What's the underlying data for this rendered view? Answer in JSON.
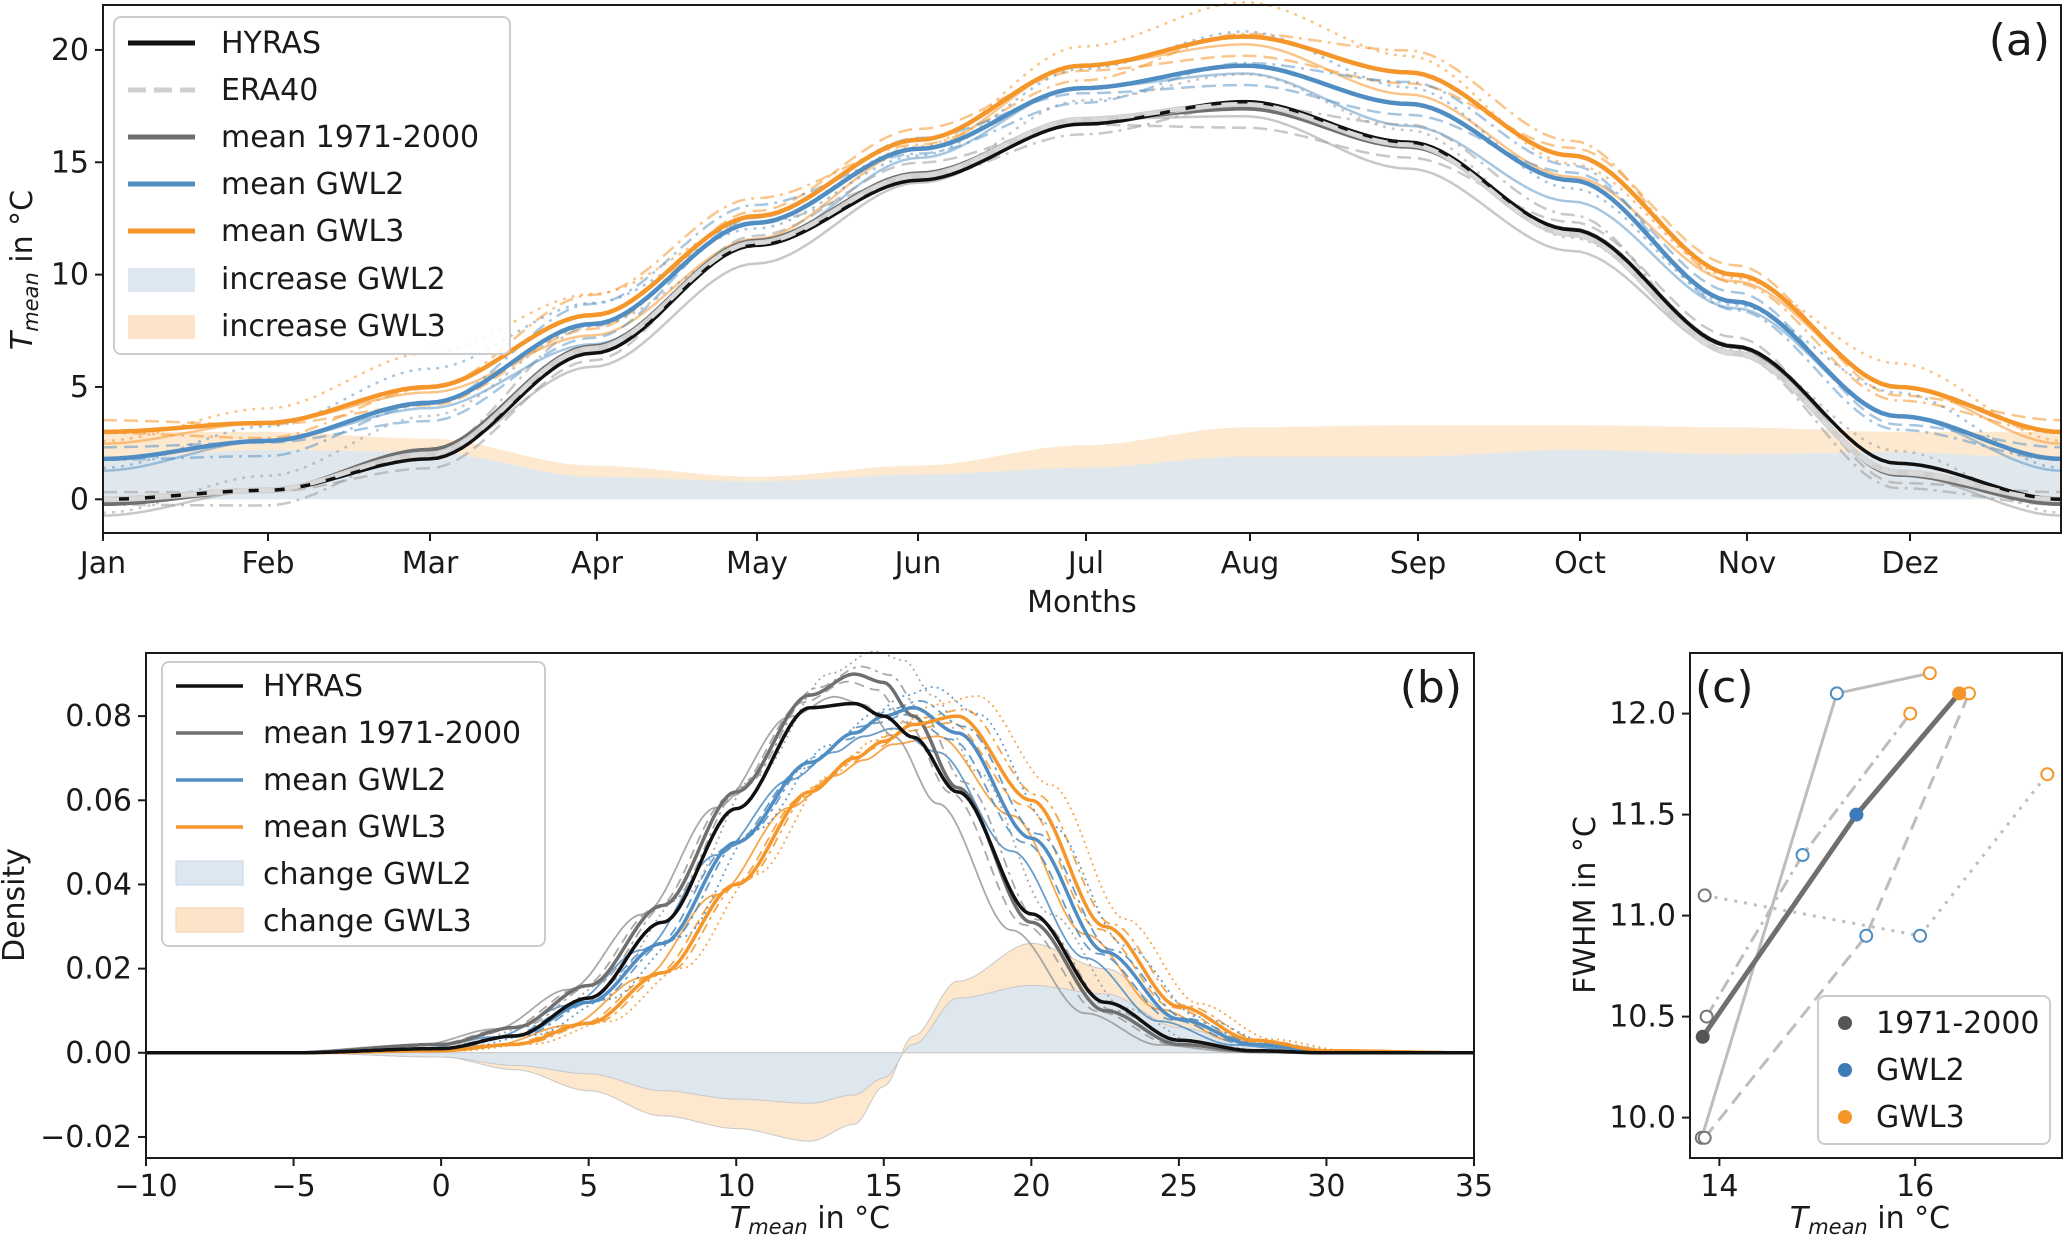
{
  "colors": {
    "hyras": "#111111",
    "era": "#bfbfbf",
    "hist": "#6f6f6f",
    "gwl2": "#4f8dc2",
    "gwl3": "#f5962a",
    "fill2": "#dce7f2",
    "fill3": "#fde4c8",
    "grey_member": "#9a9a9a"
  },
  "panel_a": {
    "tag": "(a)",
    "ylabel_main": "T",
    "ylabel_sub": "mean",
    "ylabel_rest": " in °C",
    "xlabel": "Months",
    "months": [
      "Jan",
      "Feb",
      "Mar",
      "Apr",
      "May",
      "Jun",
      "Jul",
      "Aug",
      "Sep",
      "Oct",
      "Nov",
      "Dez"
    ],
    "yticks": [
      "0",
      "5",
      "10",
      "15",
      "20"
    ],
    "legend": [
      "HYRAS",
      "ERA40",
      "mean 1971-2000",
      "mean GWL2",
      "mean GWL3",
      "increase GWL2",
      "increase GWL3"
    ]
  },
  "panel_b": {
    "tag": "(b)",
    "ylabel": "Density",
    "xlabel_main": "T",
    "xlabel_sub": "mean",
    "xlabel_rest": " in °C",
    "xticks": [
      "−10",
      "−5",
      "0",
      "5",
      "10",
      "15",
      "20",
      "25",
      "30",
      "35"
    ],
    "yticks": [
      "−0.02",
      "0.00",
      "0.02",
      "0.04",
      "0.06",
      "0.08"
    ],
    "legend": [
      "HYRAS",
      "mean 1971-2000",
      "mean GWL2",
      "mean GWL3",
      "change GWL2",
      "change GWL3"
    ]
  },
  "panel_c": {
    "tag": "(c)",
    "ylabel": "FWHM in °C",
    "xlabel_main": "T",
    "xlabel_sub": "mean",
    "xlabel_rest": " in °C",
    "xticks": [
      "14",
      "16"
    ],
    "yticks": [
      "10.0",
      "10.5",
      "11.0",
      "11.5",
      "12.0"
    ],
    "legend": [
      "1971-2000",
      "GWL2",
      "GWL3"
    ]
  },
  "chart_data": [
    {
      "panel": "a",
      "type": "line",
      "x": [
        "Jan",
        "Feb",
        "Mar",
        "Apr",
        "May",
        "Jun",
        "Jul",
        "Aug",
        "Sep",
        "Oct",
        "Nov",
        "Dez"
      ],
      "xlabel": "Months",
      "ylabel": "T_mean in °C",
      "ylim": [
        -1.5,
        22
      ],
      "legend_position": "top-left",
      "series": [
        {
          "name": "HYRAS",
          "values": [
            0.0,
            0.4,
            1.8,
            6.5,
            11.3,
            14.2,
            16.7,
            17.7,
            15.9,
            12.0,
            6.8,
            1.6
          ]
        },
        {
          "name": "ERA40",
          "values": [
            0.0,
            0.4,
            2.0,
            6.7,
            11.4,
            14.4,
            16.9,
            17.6,
            15.8,
            11.8,
            6.5,
            1.2
          ]
        },
        {
          "name": "mean 1971-2000",
          "values": [
            -0.2,
            0.4,
            2.2,
            6.8,
            11.5,
            14.5,
            16.9,
            17.4,
            15.7,
            12.0,
            6.8,
            1.1
          ]
        },
        {
          "name": "mean GWL2",
          "values": [
            1.8,
            2.6,
            4.3,
            7.8,
            12.3,
            15.6,
            18.3,
            19.3,
            17.6,
            14.2,
            8.8,
            3.7
          ]
        },
        {
          "name": "mean GWL3",
          "values": [
            3.0,
            3.4,
            5.0,
            8.2,
            12.6,
            16.0,
            19.3,
            20.6,
            19.0,
            15.3,
            10.0,
            5.0
          ]
        },
        {
          "name": "increase GWL2",
          "values": [
            1.8,
            2.2,
            2.1,
            1.0,
            0.8,
            1.1,
            1.4,
            1.9,
            1.9,
            2.2,
            2.0,
            2.1
          ]
        },
        {
          "name": "increase GWL3",
          "values": [
            3.0,
            3.0,
            2.7,
            1.5,
            1.0,
            1.5,
            2.4,
            3.2,
            3.3,
            3.3,
            3.2,
            3.0
          ]
        }
      ]
    },
    {
      "panel": "b",
      "type": "line",
      "xlabel": "T_mean in °C",
      "ylabel": "Density",
      "xlim": [
        -10,
        35
      ],
      "ylim": [
        -0.025,
        0.095
      ],
      "legend_position": "top-left",
      "x": [
        -10,
        -5,
        0,
        2.5,
        5,
        7.5,
        10,
        12.5,
        14,
        15,
        16,
        17.5,
        20,
        22.5,
        25,
        27.5,
        30,
        35
      ],
      "series": [
        {
          "name": "HYRAS",
          "values": [
            0,
            0,
            0.001,
            0.004,
            0.013,
            0.031,
            0.058,
            0.082,
            0.083,
            0.08,
            0.075,
            0.062,
            0.033,
            0.012,
            0.003,
            0.0005,
            0,
            0
          ]
        },
        {
          "name": "mean 1971-2000",
          "values": [
            0,
            0,
            0.002,
            0.006,
            0.016,
            0.035,
            0.062,
            0.085,
            0.09,
            0.088,
            0.08,
            0.063,
            0.031,
            0.01,
            0.002,
            0.0003,
            0,
            0
          ]
        },
        {
          "name": "mean GWL2",
          "values": [
            0,
            0,
            0.001,
            0.004,
            0.012,
            0.026,
            0.05,
            0.069,
            0.076,
            0.08,
            0.082,
            0.076,
            0.051,
            0.024,
            0.008,
            0.002,
            0.0003,
            0
          ]
        },
        {
          "name": "mean GWL3",
          "values": [
            0,
            0,
            0.0005,
            0.002,
            0.007,
            0.019,
            0.04,
            0.062,
            0.07,
            0.074,
            0.078,
            0.08,
            0.06,
            0.03,
            0.011,
            0.003,
            0.0005,
            0
          ]
        },
        {
          "name": "change GWL2",
          "values": [
            0,
            0,
            -0.001,
            -0.003,
            -0.005,
            -0.009,
            -0.011,
            -0.012,
            -0.01,
            -0.006,
            0.002,
            0.013,
            0.016,
            0.014,
            0.006,
            0.002,
            0,
            0
          ]
        },
        {
          "name": "change GWL3",
          "values": [
            0,
            0,
            -0.001,
            -0.004,
            -0.009,
            -0.015,
            -0.018,
            -0.021,
            -0.017,
            -0.008,
            0.004,
            0.017,
            0.026,
            0.02,
            0.008,
            0.002,
            0,
            0
          ]
        }
      ]
    },
    {
      "panel": "c",
      "type": "scatter",
      "xlabel": "T_mean in °C",
      "ylabel": "FWHM in °C",
      "xlim": [
        13.7,
        17.5
      ],
      "ylim": [
        9.8,
        12.3
      ],
      "legend_position": "bottom-right",
      "series": [
        {
          "name": "1971-2000",
          "x": [
            13.83
          ],
          "y": [
            10.4
          ]
        },
        {
          "name": "GWL2",
          "x": [
            15.4
          ],
          "y": [
            11.5
          ]
        },
        {
          "name": "GWL3",
          "x": [
            16.45
          ],
          "y": [
            12.1
          ]
        }
      ],
      "members": [
        {
          "style": "solid",
          "points": [
            [
              13.82,
              9.9
            ],
            [
              15.2,
              12.1
            ],
            [
              16.15,
              12.2
            ]
          ]
        },
        {
          "style": "dashdot",
          "points": [
            [
              13.87,
              10.5
            ],
            [
              14.85,
              11.3
            ],
            [
              15.95,
              12.0
            ]
          ]
        },
        {
          "style": "dashed",
          "points": [
            [
              13.85,
              9.9
            ],
            [
              15.5,
              10.9
            ],
            [
              16.55,
              12.1
            ]
          ]
        },
        {
          "style": "dotted",
          "points": [
            [
              13.85,
              11.1
            ],
            [
              16.05,
              10.9
            ],
            [
              17.35,
              11.7
            ]
          ]
        }
      ]
    }
  ]
}
